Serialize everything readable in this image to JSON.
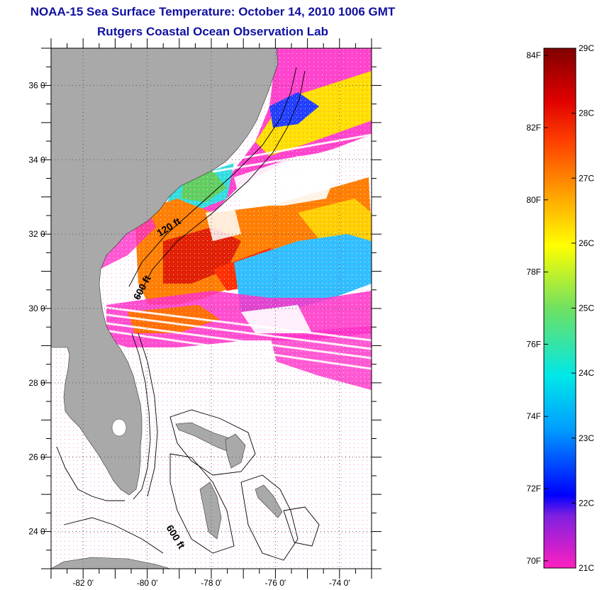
{
  "title": {
    "line1": "NOAA-15 Sea Surface Temperature:  October 14, 2010 1006 GMT",
    "line2": "Rutgers Coastal Ocean Observation Lab"
  },
  "map": {
    "lon_range": [
      -83,
      -73
    ],
    "lat_range": [
      23,
      37
    ],
    "lon_ticks": [
      {
        "value": -82,
        "label": "-82 0'"
      },
      {
        "value": -80,
        "label": "-80 0'"
      },
      {
        "value": -78,
        "label": "-78 0'"
      },
      {
        "value": -76,
        "label": "-76 0'"
      },
      {
        "value": -74,
        "label": "-74 0'"
      }
    ],
    "lat_ticks": [
      {
        "value": 24,
        "label": "24 0'"
      },
      {
        "value": 26,
        "label": "26 0'"
      },
      {
        "value": 28,
        "label": "28 0'"
      },
      {
        "value": 30,
        "label": "30 0'"
      },
      {
        "value": 32,
        "label": "32 0'"
      },
      {
        "value": 34,
        "label": "34 0'"
      },
      {
        "value": 36,
        "label": "36 0'"
      }
    ],
    "depth_labels": [
      "120 ft",
      "600 ft",
      "600 ft"
    ],
    "colors": {
      "land": "#a9a9a9",
      "ocean_nodata": "#ffffff",
      "contour": "#000000",
      "grid": "#555555"
    }
  },
  "colorbar": {
    "range_c": [
      21,
      29
    ],
    "celsius_labels": [
      {
        "value": 29,
        "label": "29C"
      },
      {
        "value": 28,
        "label": "28C"
      },
      {
        "value": 27,
        "label": "27C"
      },
      {
        "value": 26,
        "label": "26C"
      },
      {
        "value": 25,
        "label": "25C"
      },
      {
        "value": 24,
        "label": "24C"
      },
      {
        "value": 23,
        "label": "23C"
      },
      {
        "value": 22,
        "label": "22C"
      },
      {
        "value": 21,
        "label": "21C"
      }
    ],
    "fahrenheit_labels": [
      {
        "value": 84,
        "label": "84F"
      },
      {
        "value": 82,
        "label": "82F"
      },
      {
        "value": 80,
        "label": "80F"
      },
      {
        "value": 78,
        "label": "78F"
      },
      {
        "value": 76,
        "label": "76F"
      },
      {
        "value": 74,
        "label": "74F"
      },
      {
        "value": 72,
        "label": "72F"
      },
      {
        "value": 70,
        "label": "70F"
      }
    ],
    "gradient": [
      {
        "stop": 0.0,
        "color": "#ff20c0"
      },
      {
        "stop": 0.1,
        "color": "#8020e0"
      },
      {
        "stop": 0.14,
        "color": "#0000ff"
      },
      {
        "stop": 0.27,
        "color": "#00a0ff"
      },
      {
        "stop": 0.37,
        "color": "#00e8e8"
      },
      {
        "stop": 0.5,
        "color": "#70e060"
      },
      {
        "stop": 0.62,
        "color": "#ffff00"
      },
      {
        "stop": 0.72,
        "color": "#ffa000"
      },
      {
        "stop": 0.82,
        "color": "#ff4000"
      },
      {
        "stop": 0.9,
        "color": "#e00000"
      },
      {
        "stop": 1.0,
        "color": "#800000"
      }
    ]
  }
}
